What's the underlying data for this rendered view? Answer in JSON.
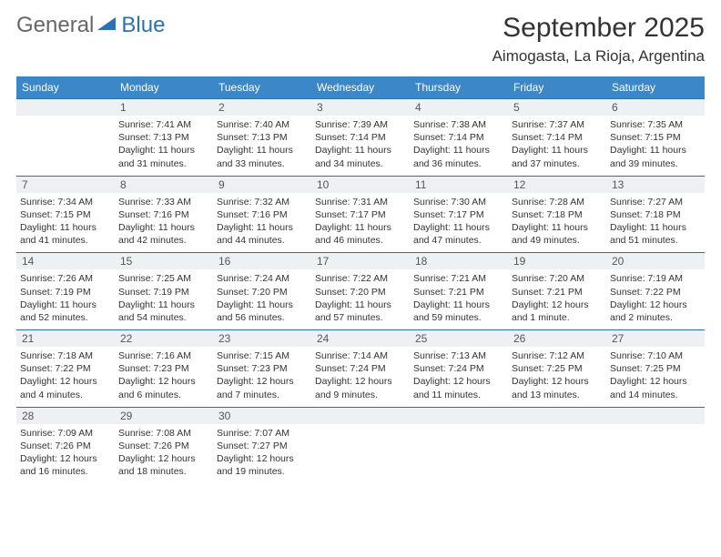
{
  "logo": {
    "text_general": "General",
    "text_blue": "Blue",
    "triangle_color": "#2a72b5"
  },
  "header": {
    "month_title": "September 2025",
    "location": "Aimogasta, La Rioja, Argentina"
  },
  "colors": {
    "header_bar": "#3b87c8",
    "daynum_bg": "#eef1f4",
    "daynum_border": "#2a6fa8",
    "text": "#333333"
  },
  "dow": [
    "Sunday",
    "Monday",
    "Tuesday",
    "Wednesday",
    "Thursday",
    "Friday",
    "Saturday"
  ],
  "weeks": [
    [
      {
        "n": "",
        "sunrise": "",
        "sunset": "",
        "daylight": ""
      },
      {
        "n": "1",
        "sunrise": "Sunrise: 7:41 AM",
        "sunset": "Sunset: 7:13 PM",
        "daylight": "Daylight: 11 hours and 31 minutes."
      },
      {
        "n": "2",
        "sunrise": "Sunrise: 7:40 AM",
        "sunset": "Sunset: 7:13 PM",
        "daylight": "Daylight: 11 hours and 33 minutes."
      },
      {
        "n": "3",
        "sunrise": "Sunrise: 7:39 AM",
        "sunset": "Sunset: 7:14 PM",
        "daylight": "Daylight: 11 hours and 34 minutes."
      },
      {
        "n": "4",
        "sunrise": "Sunrise: 7:38 AM",
        "sunset": "Sunset: 7:14 PM",
        "daylight": "Daylight: 11 hours and 36 minutes."
      },
      {
        "n": "5",
        "sunrise": "Sunrise: 7:37 AM",
        "sunset": "Sunset: 7:14 PM",
        "daylight": "Daylight: 11 hours and 37 minutes."
      },
      {
        "n": "6",
        "sunrise": "Sunrise: 7:35 AM",
        "sunset": "Sunset: 7:15 PM",
        "daylight": "Daylight: 11 hours and 39 minutes."
      }
    ],
    [
      {
        "n": "7",
        "sunrise": "Sunrise: 7:34 AM",
        "sunset": "Sunset: 7:15 PM",
        "daylight": "Daylight: 11 hours and 41 minutes."
      },
      {
        "n": "8",
        "sunrise": "Sunrise: 7:33 AM",
        "sunset": "Sunset: 7:16 PM",
        "daylight": "Daylight: 11 hours and 42 minutes."
      },
      {
        "n": "9",
        "sunrise": "Sunrise: 7:32 AM",
        "sunset": "Sunset: 7:16 PM",
        "daylight": "Daylight: 11 hours and 44 minutes."
      },
      {
        "n": "10",
        "sunrise": "Sunrise: 7:31 AM",
        "sunset": "Sunset: 7:17 PM",
        "daylight": "Daylight: 11 hours and 46 minutes."
      },
      {
        "n": "11",
        "sunrise": "Sunrise: 7:30 AM",
        "sunset": "Sunset: 7:17 PM",
        "daylight": "Daylight: 11 hours and 47 minutes."
      },
      {
        "n": "12",
        "sunrise": "Sunrise: 7:28 AM",
        "sunset": "Sunset: 7:18 PM",
        "daylight": "Daylight: 11 hours and 49 minutes."
      },
      {
        "n": "13",
        "sunrise": "Sunrise: 7:27 AM",
        "sunset": "Sunset: 7:18 PM",
        "daylight": "Daylight: 11 hours and 51 minutes."
      }
    ],
    [
      {
        "n": "14",
        "sunrise": "Sunrise: 7:26 AM",
        "sunset": "Sunset: 7:19 PM",
        "daylight": "Daylight: 11 hours and 52 minutes."
      },
      {
        "n": "15",
        "sunrise": "Sunrise: 7:25 AM",
        "sunset": "Sunset: 7:19 PM",
        "daylight": "Daylight: 11 hours and 54 minutes."
      },
      {
        "n": "16",
        "sunrise": "Sunrise: 7:24 AM",
        "sunset": "Sunset: 7:20 PM",
        "daylight": "Daylight: 11 hours and 56 minutes."
      },
      {
        "n": "17",
        "sunrise": "Sunrise: 7:22 AM",
        "sunset": "Sunset: 7:20 PM",
        "daylight": "Daylight: 11 hours and 57 minutes."
      },
      {
        "n": "18",
        "sunrise": "Sunrise: 7:21 AM",
        "sunset": "Sunset: 7:21 PM",
        "daylight": "Daylight: 11 hours and 59 minutes."
      },
      {
        "n": "19",
        "sunrise": "Sunrise: 7:20 AM",
        "sunset": "Sunset: 7:21 PM",
        "daylight": "Daylight: 12 hours and 1 minute."
      },
      {
        "n": "20",
        "sunrise": "Sunrise: 7:19 AM",
        "sunset": "Sunset: 7:22 PM",
        "daylight": "Daylight: 12 hours and 2 minutes."
      }
    ],
    [
      {
        "n": "21",
        "sunrise": "Sunrise: 7:18 AM",
        "sunset": "Sunset: 7:22 PM",
        "daylight": "Daylight: 12 hours and 4 minutes."
      },
      {
        "n": "22",
        "sunrise": "Sunrise: 7:16 AM",
        "sunset": "Sunset: 7:23 PM",
        "daylight": "Daylight: 12 hours and 6 minutes."
      },
      {
        "n": "23",
        "sunrise": "Sunrise: 7:15 AM",
        "sunset": "Sunset: 7:23 PM",
        "daylight": "Daylight: 12 hours and 7 minutes."
      },
      {
        "n": "24",
        "sunrise": "Sunrise: 7:14 AM",
        "sunset": "Sunset: 7:24 PM",
        "daylight": "Daylight: 12 hours and 9 minutes."
      },
      {
        "n": "25",
        "sunrise": "Sunrise: 7:13 AM",
        "sunset": "Sunset: 7:24 PM",
        "daylight": "Daylight: 12 hours and 11 minutes."
      },
      {
        "n": "26",
        "sunrise": "Sunrise: 7:12 AM",
        "sunset": "Sunset: 7:25 PM",
        "daylight": "Daylight: 12 hours and 13 minutes."
      },
      {
        "n": "27",
        "sunrise": "Sunrise: 7:10 AM",
        "sunset": "Sunset: 7:25 PM",
        "daylight": "Daylight: 12 hours and 14 minutes."
      }
    ],
    [
      {
        "n": "28",
        "sunrise": "Sunrise: 7:09 AM",
        "sunset": "Sunset: 7:26 PM",
        "daylight": "Daylight: 12 hours and 16 minutes."
      },
      {
        "n": "29",
        "sunrise": "Sunrise: 7:08 AM",
        "sunset": "Sunset: 7:26 PM",
        "daylight": "Daylight: 12 hours and 18 minutes."
      },
      {
        "n": "30",
        "sunrise": "Sunrise: 7:07 AM",
        "sunset": "Sunset: 7:27 PM",
        "daylight": "Daylight: 12 hours and 19 minutes."
      },
      {
        "n": "",
        "sunrise": "",
        "sunset": "",
        "daylight": ""
      },
      {
        "n": "",
        "sunrise": "",
        "sunset": "",
        "daylight": ""
      },
      {
        "n": "",
        "sunrise": "",
        "sunset": "",
        "daylight": ""
      },
      {
        "n": "",
        "sunrise": "",
        "sunset": "",
        "daylight": ""
      }
    ]
  ]
}
